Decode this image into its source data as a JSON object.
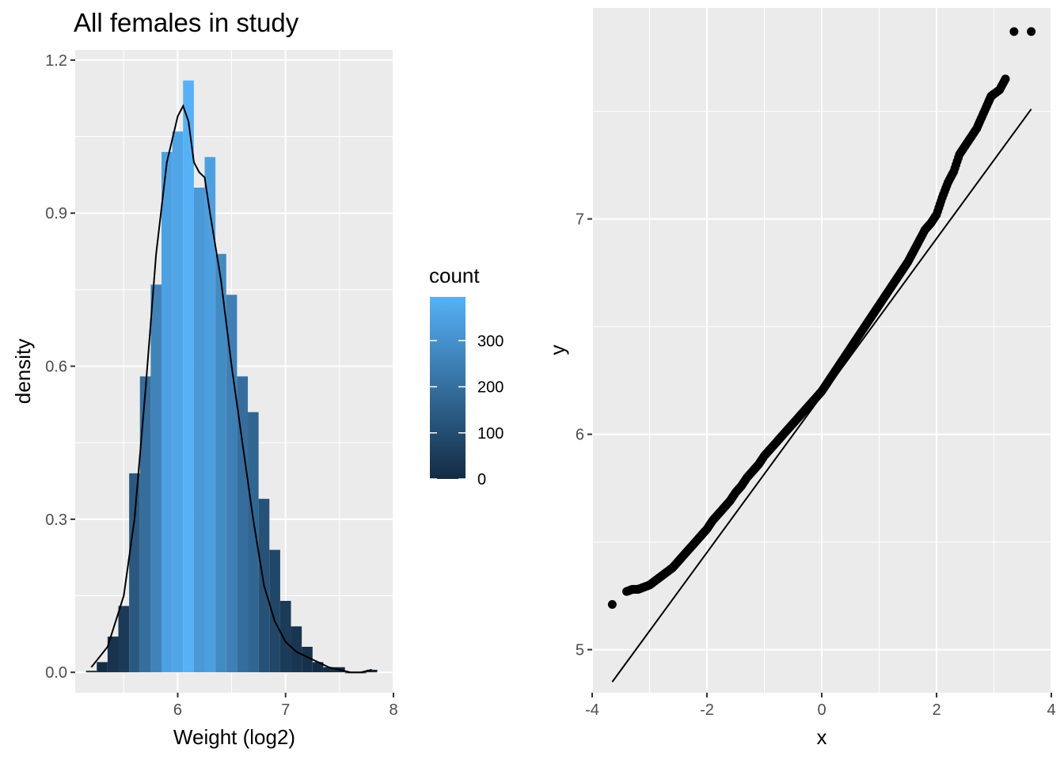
{
  "chart_data": [
    {
      "type": "bar",
      "subtype": "histogram",
      "title": "All females in study",
      "xlabel": "Weight (log2)",
      "ylabel": "density",
      "xlim": [
        5.05,
        8.0
      ],
      "ylim": [
        -0.04,
        1.22
      ],
      "xticks": [
        6,
        7,
        8
      ],
      "xtick_labels": [
        "6",
        "7",
        "8"
      ],
      "yticks": [
        0.0,
        0.3,
        0.6,
        0.9,
        1.2
      ],
      "ytick_labels": [
        "0.0",
        "0.3",
        "0.6",
        "0.9",
        "1.2"
      ],
      "grid": true,
      "bin_width": 0.1,
      "bin_starts": [
        5.15,
        5.25,
        5.35,
        5.45,
        5.55,
        5.65,
        5.75,
        5.85,
        5.95,
        6.05,
        6.15,
        6.25,
        6.35,
        6.45,
        6.55,
        6.65,
        6.75,
        6.85,
        6.95,
        7.05,
        7.15,
        7.25,
        7.35,
        7.45,
        7.55,
        7.65,
        7.75
      ],
      "density": [
        0.003,
        0.02,
        0.07,
        0.13,
        0.39,
        0.58,
        0.76,
        1.02,
        1.06,
        1.16,
        0.95,
        1.01,
        0.82,
        0.74,
        0.58,
        0.51,
        0.34,
        0.24,
        0.14,
        0.09,
        0.05,
        0.02,
        0.01,
        0.01,
        0.0,
        0.0,
        0.005
      ],
      "density_curve": {
        "x": [
          5.2,
          5.35,
          5.5,
          5.6,
          5.7,
          5.8,
          5.9,
          6.0,
          6.05,
          6.1,
          6.15,
          6.2,
          6.25,
          6.3,
          6.4,
          6.5,
          6.6,
          6.7,
          6.8,
          6.9,
          7.0,
          7.1,
          7.2,
          7.3,
          7.4,
          7.5,
          7.6,
          7.7,
          7.8
        ],
        "y": [
          0.01,
          0.05,
          0.15,
          0.3,
          0.55,
          0.82,
          1.0,
          1.09,
          1.11,
          1.08,
          1.0,
          0.98,
          0.97,
          0.9,
          0.77,
          0.6,
          0.45,
          0.3,
          0.17,
          0.1,
          0.06,
          0.04,
          0.03,
          0.02,
          0.01,
          0.005,
          0.0,
          0.0,
          0.005
        ]
      },
      "legend": {
        "title": "count",
        "placement": "right",
        "type": "colorbar",
        "ticks": [
          0,
          100,
          200,
          300
        ],
        "tick_labels": [
          "0",
          "100",
          "200",
          "300"
        ],
        "min": 0,
        "max": 395,
        "low_color": "#132B43",
        "high_color": "#56B1F7"
      }
    },
    {
      "type": "scatter",
      "subtype": "qq-plot",
      "title": "",
      "xlabel": "x",
      "ylabel": "y",
      "xlim": [
        -4.0,
        4.0
      ],
      "ylim": [
        4.8,
        7.98
      ],
      "xticks": [
        -4,
        -2,
        0,
        2,
        4
      ],
      "xtick_labels": [
        "-4",
        "-2",
        "0",
        "2",
        "4"
      ],
      "yticks": [
        5,
        6,
        7
      ],
      "ytick_labels": [
        "5",
        "6",
        "7"
      ],
      "grid": true,
      "points": {
        "x": [
          -3.65,
          -3.4,
          -3.3,
          -3.2,
          -3.1,
          -3.0,
          -2.9,
          -2.8,
          -2.7,
          -2.6,
          -2.5,
          -2.4,
          -2.3,
          -2.2,
          -2.1,
          -2.0,
          -1.9,
          -1.8,
          -1.7,
          -1.6,
          -1.5,
          -1.4,
          -1.3,
          -1.2,
          -1.1,
          -1.0,
          -0.9,
          -0.8,
          -0.7,
          -0.6,
          -0.5,
          -0.4,
          -0.3,
          -0.2,
          -0.1,
          0.0,
          0.1,
          0.2,
          0.3,
          0.4,
          0.5,
          0.6,
          0.7,
          0.8,
          0.9,
          1.0,
          1.1,
          1.2,
          1.3,
          1.4,
          1.5,
          1.6,
          1.7,
          1.8,
          1.9,
          2.0,
          2.1,
          2.2,
          2.3,
          2.4,
          2.5,
          2.6,
          2.7,
          2.8,
          2.9,
          2.95,
          3.0,
          3.1,
          3.2,
          3.35,
          3.65
        ],
        "y": [
          5.21,
          5.27,
          5.28,
          5.28,
          5.29,
          5.3,
          5.32,
          5.34,
          5.36,
          5.38,
          5.41,
          5.44,
          5.47,
          5.5,
          5.53,
          5.56,
          5.6,
          5.63,
          5.66,
          5.69,
          5.73,
          5.76,
          5.8,
          5.83,
          5.86,
          5.9,
          5.93,
          5.96,
          5.99,
          6.02,
          6.05,
          6.08,
          6.11,
          6.14,
          6.17,
          6.2,
          6.24,
          6.28,
          6.32,
          6.36,
          6.4,
          6.44,
          6.48,
          6.52,
          6.56,
          6.6,
          6.64,
          6.68,
          6.72,
          6.76,
          6.8,
          6.85,
          6.9,
          6.95,
          6.98,
          7.02,
          7.1,
          7.17,
          7.22,
          7.3,
          7.34,
          7.38,
          7.42,
          7.48,
          7.54,
          7.57,
          7.58,
          7.6,
          7.65,
          7.87,
          7.87
        ]
      },
      "reference_line": {
        "x": [
          -3.65,
          3.65
        ],
        "y": [
          4.85,
          7.51
        ]
      }
    }
  ]
}
